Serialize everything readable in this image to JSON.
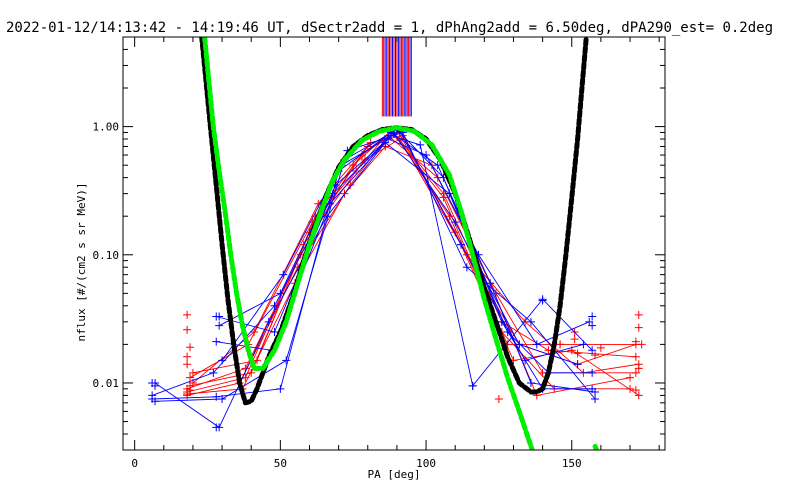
{
  "chart_data": {
    "type": "line",
    "title": "2022-01-12/14:13:42 - 14:19:46 UT, dSectr2add = 1, dPhAng2add = 6.50deg, dPA290_est=   0.2deg",
    "xlabel": "PA [deg]",
    "ylabel": "nflux [#/(cm2 s sr MeV)]",
    "xlim": [
      -4,
      182
    ],
    "ylim": [
      0.003,
      5.0
    ],
    "yscale": "log",
    "x_ticks": [
      0,
      50,
      100,
      150
    ],
    "x_tick_labels": [
      "0",
      "50",
      "100",
      "150"
    ],
    "y_ticks": [
      0.01,
      0.1,
      1.0
    ],
    "y_tick_labels": [
      "0.01",
      "0.10",
      "1.00"
    ],
    "grid": false,
    "colors": {
      "red_series": "#ff0000",
      "blue_series": "#0000ff",
      "fit_black": "#000000",
      "fit_green": "#00ee00"
    },
    "series": [
      {
        "color": "red",
        "lines": [
          [
            [
              18,
              0.0085
            ],
            [
              38,
              0.011
            ],
            [
              58,
              0.12
            ],
            [
              76,
              0.45
            ],
            [
              88,
              0.95
            ],
            [
              106,
              0.3
            ],
            [
              126,
              0.03
            ],
            [
              142,
              0.018
            ],
            [
              172,
              0.016
            ]
          ],
          [
            [
              19,
              0.0095
            ],
            [
              40,
              0.012
            ],
            [
              60,
              0.15
            ],
            [
              78,
              0.6
            ],
            [
              89,
              0.9
            ],
            [
              108,
              0.2
            ],
            [
              128,
              0.02
            ],
            [
              146,
              0.02
            ],
            [
              174,
              0.02
            ]
          ],
          [
            [
              18,
              0.008
            ],
            [
              36,
              0.01
            ],
            [
              56,
              0.08
            ],
            [
              74,
              0.35
            ],
            [
              87,
              0.85
            ],
            [
              104,
              0.4
            ],
            [
              124,
              0.05
            ],
            [
              140,
              0.012
            ],
            [
              172,
              0.012
            ]
          ],
          [
            [
              20,
              0.012
            ],
            [
              42,
              0.015
            ],
            [
              62,
              0.2
            ],
            [
              80,
              0.7
            ],
            [
              90,
              0.95
            ],
            [
              110,
              0.15
            ],
            [
              130,
              0.015
            ],
            [
              150,
              0.018
            ],
            [
              173,
              0.008
            ]
          ],
          [
            [
              18,
              0.009
            ],
            [
              38,
              0.013
            ],
            [
              57,
              0.1
            ],
            [
              75,
              0.5
            ],
            [
              88,
              0.92
            ],
            [
              106,
              0.28
            ],
            [
              126,
              0.025
            ],
            [
              144,
              0.009
            ],
            [
              170,
              0.009
            ]
          ],
          [
            [
              19,
              0.011
            ],
            [
              39,
              0.02
            ],
            [
              61,
              0.18
            ],
            [
              79,
              0.55
            ],
            [
              91,
              0.8
            ],
            [
              112,
              0.12
            ],
            [
              132,
              0.02
            ],
            [
              152,
              0.014
            ],
            [
              172,
              0.02
            ]
          ],
          [
            [
              18,
              0.0082
            ],
            [
              37,
              0.009
            ],
            [
              55,
              0.06
            ],
            [
              72,
              0.3
            ],
            [
              86,
              0.7
            ],
            [
              102,
              0.5
            ],
            [
              122,
              0.06
            ],
            [
              138,
              0.008
            ],
            [
              170,
              0.011
            ]
          ],
          [
            [
              20,
              0.01
            ],
            [
              41,
              0.025
            ],
            [
              63,
              0.25
            ],
            [
              81,
              0.75
            ],
            [
              92,
              0.85
            ],
            [
              114,
              0.1
            ],
            [
              134,
              0.03
            ],
            [
              154,
              0.012
            ],
            [
              173,
              0.014
            ]
          ]
        ],
        "markers": [
          [
            18,
            0.034
          ],
          [
            18,
            0.026
          ],
          [
            19,
            0.019
          ],
          [
            18,
            0.016
          ],
          [
            18,
            0.014
          ],
          [
            19,
            0.0088
          ],
          [
            173,
            0.034
          ],
          [
            173,
            0.027
          ],
          [
            172,
            0.021
          ],
          [
            173,
            0.013
          ],
          [
            172,
            0.0088
          ],
          [
            125,
            0.0075
          ],
          [
            158,
            0.0165
          ],
          [
            160,
            0.0188
          ],
          [
            151,
            0.025
          ],
          [
            151,
            0.022
          ],
          [
            146,
            0.02
          ],
          [
            152,
            0.017
          ]
        ]
      },
      {
        "color": "blue",
        "lines": [
          [
            [
              6,
              0.0075
            ],
            [
              28,
              0.0078
            ],
            [
              50,
              0.009
            ],
            [
              70,
              0.45
            ],
            [
              88,
              0.9
            ],
            [
              104,
              0.5
            ],
            [
              122,
              0.06
            ],
            [
              136,
              0.01
            ],
            [
              158,
              0.0085
            ]
          ],
          [
            [
              7,
              0.0072
            ],
            [
              30,
              0.0075
            ],
            [
              52,
              0.015
            ],
            [
              72,
              0.55
            ],
            [
              90,
              0.95
            ],
            [
              106,
              0.4
            ],
            [
              126,
              0.03
            ],
            [
              140,
              0.009
            ],
            [
              157,
              0.009
            ]
          ],
          [
            [
              6,
              0.008
            ],
            [
              27,
              0.012
            ],
            [
              48,
              0.04
            ],
            [
              68,
              0.3
            ],
            [
              87,
              0.8
            ],
            [
              100,
              0.6
            ],
            [
              118,
              0.1
            ],
            [
              138,
              0.02
            ],
            [
              156,
              0.03
            ]
          ],
          [
            [
              7,
              0.01
            ],
            [
              29,
              0.0045
            ],
            [
              46,
              0.03
            ],
            [
              66,
              0.2
            ],
            [
              86,
              0.75
            ],
            [
              108,
              0.3
            ],
            [
              128,
              0.025
            ],
            [
              142,
              0.012
            ],
            [
              157,
              0.012
            ]
          ],
          [
            [
              28,
              0.033
            ],
            [
              48,
              0.025
            ],
            [
              69,
              0.35
            ],
            [
              89,
              0.88
            ],
            [
              110,
              0.18
            ],
            [
              132,
              0.02
            ],
            [
              152,
              0.014
            ]
          ],
          [
            [
              29,
              0.028
            ],
            [
              50,
              0.05
            ],
            [
              71,
              0.5
            ],
            [
              91,
              0.92
            ],
            [
              112,
              0.12
            ],
            [
              134,
              0.015
            ],
            [
              154,
              0.02
            ]
          ],
          [
            [
              28,
              0.021
            ],
            [
              47,
              0.018
            ],
            [
              67,
              0.25
            ],
            [
              88,
              0.85
            ],
            [
              98,
              0.72
            ],
            [
              116,
              0.0095
            ],
            [
              140,
              0.045
            ],
            [
              157,
              0.018
            ]
          ],
          [
            [
              30,
              0.015
            ],
            [
              51,
              0.07
            ],
            [
              73,
              0.65
            ],
            [
              92,
              0.9
            ],
            [
              114,
              0.08
            ],
            [
              136,
              0.03
            ],
            [
              158,
              0.0075
            ]
          ]
        ],
        "markers": [
          [
            6,
            0.01
          ],
          [
            7,
            0.0095
          ],
          [
            28,
            0.0045
          ],
          [
            29,
            0.033
          ],
          [
            140,
            0.044
          ],
          [
            157,
            0.033
          ],
          [
            157,
            0.028
          ],
          [
            116,
            0.0095
          ]
        ]
      },
      {
        "color": "black",
        "points": [
          [
            23,
            5.0
          ],
          [
            26,
            1.0
          ],
          [
            28,
            0.35
          ],
          [
            30,
            0.12
          ],
          [
            32,
            0.045
          ],
          [
            34,
            0.02
          ],
          [
            36,
            0.01
          ],
          [
            38,
            0.007
          ],
          [
            40,
            0.0072
          ],
          [
            42,
            0.009
          ],
          [
            44,
            0.012
          ],
          [
            46,
            0.016
          ],
          [
            48,
            0.02
          ],
          [
            50,
            0.025
          ],
          [
            54,
            0.045
          ],
          [
            58,
            0.09
          ],
          [
            62,
            0.17
          ],
          [
            66,
            0.3
          ],
          [
            70,
            0.48
          ],
          [
            75,
            0.7
          ],
          [
            80,
            0.85
          ],
          [
            85,
            0.95
          ],
          [
            90,
            0.98
          ],
          [
            95,
            0.95
          ],
          [
            100,
            0.8
          ],
          [
            105,
            0.55
          ],
          [
            110,
            0.3
          ],
          [
            115,
            0.13
          ],
          [
            120,
            0.055
          ],
          [
            124,
            0.03
          ],
          [
            128,
            0.016
          ],
          [
            132,
            0.01
          ],
          [
            136,
            0.0085
          ],
          [
            138,
            0.0085
          ],
          [
            140,
            0.009
          ],
          [
            142,
            0.012
          ],
          [
            144,
            0.02
          ],
          [
            146,
            0.04
          ],
          [
            148,
            0.1
          ],
          [
            150,
            0.28
          ],
          [
            152,
            0.8
          ],
          [
            155,
            5.0
          ]
        ]
      },
      {
        "color": "green",
        "points": [
          [
            24,
            5.0
          ],
          [
            27,
            1.0
          ],
          [
            29,
            0.45
          ],
          [
            31,
            0.22
          ],
          [
            33,
            0.1
          ],
          [
            35,
            0.05
          ],
          [
            37,
            0.028
          ],
          [
            39,
            0.018
          ],
          [
            41,
            0.013
          ],
          [
            44,
            0.013
          ],
          [
            48,
            0.018
          ],
          [
            52,
            0.03
          ],
          [
            56,
            0.06
          ],
          [
            60,
            0.12
          ],
          [
            64,
            0.22
          ],
          [
            68,
            0.38
          ],
          [
            72,
            0.55
          ],
          [
            78,
            0.78
          ],
          [
            84,
            0.92
          ],
          [
            90,
            0.98
          ],
          [
            96,
            0.92
          ],
          [
            102,
            0.72
          ],
          [
            108,
            0.42
          ],
          [
            112,
            0.22
          ],
          [
            116,
            0.1
          ],
          [
            120,
            0.045
          ],
          [
            124,
            0.022
          ],
          [
            128,
            0.011
          ],
          [
            132,
            0.006
          ],
          [
            136,
            0.0032
          ],
          [
            139,
            0.002
          ]
        ],
        "points_extra": [
          [
            158,
            0.0032
          ],
          [
            158.5,
            0.003
          ]
        ]
      }
    ],
    "vertical_band": {
      "x_start": 85,
      "x_end": 95,
      "y_from": 1.2,
      "y_to": 5.0,
      "colors": [
        "#ff0000",
        "#0000ff"
      ]
    }
  }
}
